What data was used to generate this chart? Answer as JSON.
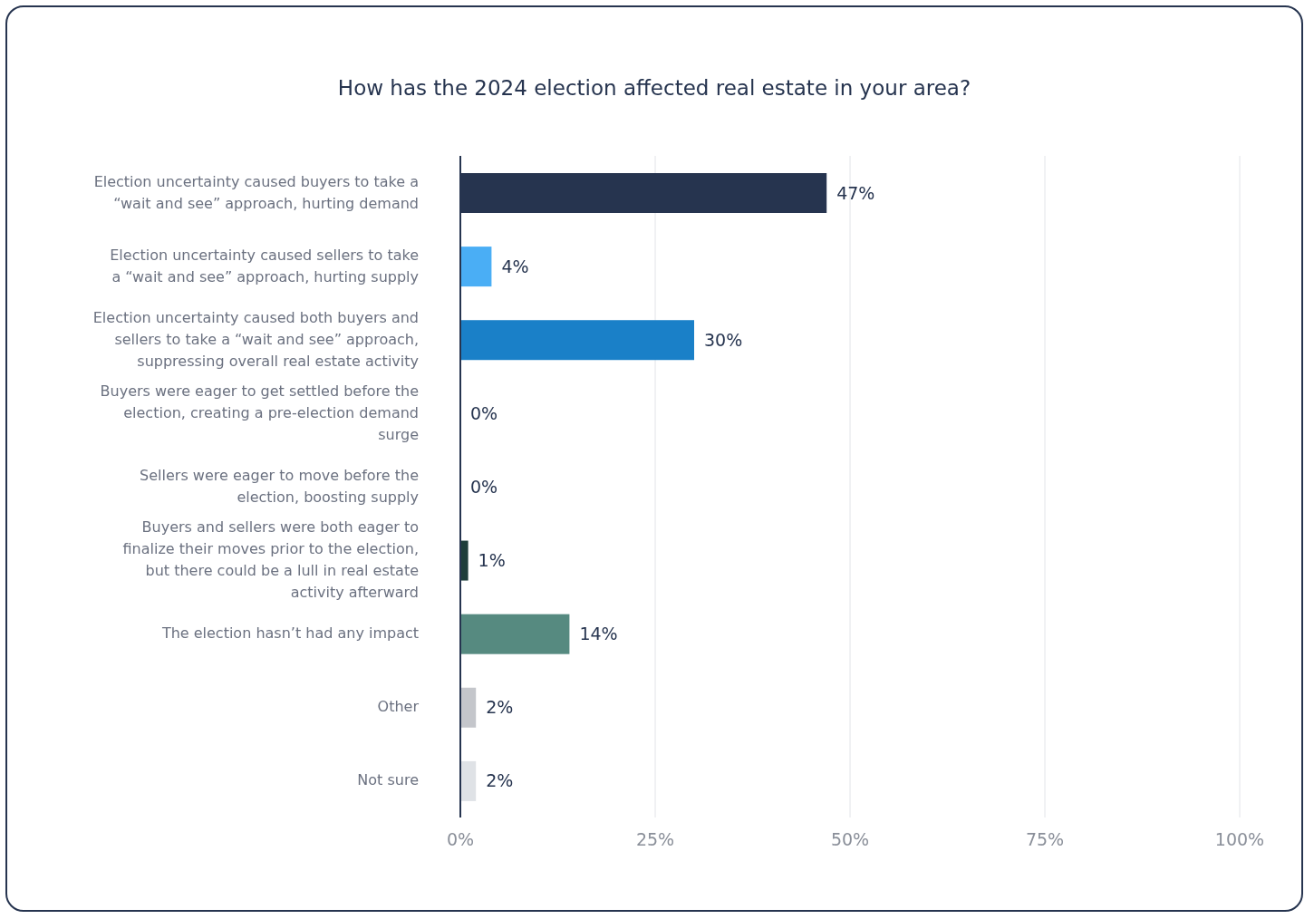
{
  "chart_data": {
    "type": "bar",
    "orientation": "horizontal",
    "title": "How has the 2024 election affected real estate in your area?",
    "categories": [
      "Election uncertainty caused buyers to take a “wait and see” approach, hurting demand",
      "Election uncertainty caused sellers to take a “wait and see” approach, hurting supply",
      "Election uncertainty caused both buyers and sellers to take a “wait and see” approach, suppressing overall real estate activity",
      "Buyers were eager to get settled before the election, creating a pre-election demand surge",
      "Sellers were eager to move before the election, boosting supply",
      "Buyers and sellers were both eager to finalize their moves prior to the election, but there could be a lull in real estate activity afterward",
      "The election hasn’t had any impact",
      "Other",
      "Not sure"
    ],
    "values": [
      47,
      4,
      30,
      0,
      0,
      1,
      14,
      2,
      2
    ],
    "value_labels": [
      "47%",
      "4%",
      "30%",
      "0%",
      "0%",
      "1%",
      "14%",
      "2%",
      "2%"
    ],
    "colors": [
      "#26344f",
      "#4aaef5",
      "#1a80c8",
      "#26344f",
      "#26344f",
      "#1e3d3a",
      "#568a80",
      "#c4c6cb",
      "#dfe2e6"
    ],
    "xlim": [
      0,
      100
    ],
    "xticks": [
      {
        "value": 0,
        "label": "0%"
      },
      {
        "value": 25,
        "label": "25%"
      },
      {
        "value": 50,
        "label": "50%"
      },
      {
        "value": 75,
        "label": "75%"
      },
      {
        "value": 100,
        "label": "100%"
      }
    ],
    "grid": "x"
  }
}
